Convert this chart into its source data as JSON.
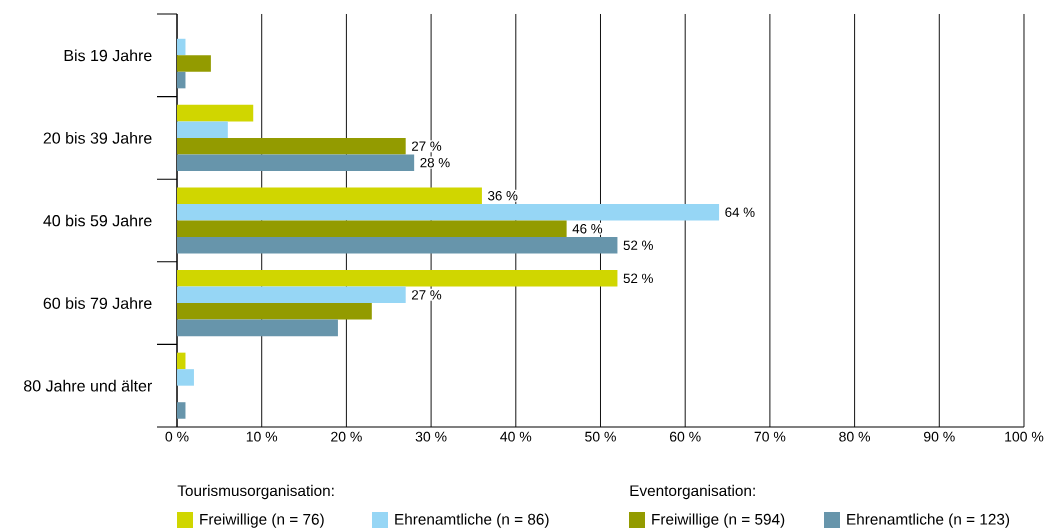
{
  "chart_data": {
    "type": "bar",
    "orientation": "horizontal",
    "categories": [
      "Bis 19 Jahre",
      "20 bis 39 Jahre",
      "40 bis 59 Jahre",
      "60 bis 79 Jahre",
      "80 Jahre und älter"
    ],
    "series": [
      {
        "name": "Freiwillige (n = 76)",
        "color": "#d0d600",
        "values": [
          null,
          9,
          36,
          52,
          1
        ],
        "value_labels": [
          null,
          null,
          "36 %",
          "52 %",
          null
        ]
      },
      {
        "name": "Ehrenamtliche (n = 86)",
        "color": "#96d6f5",
        "values": [
          1,
          6,
          64,
          27,
          2
        ],
        "value_labels": [
          null,
          null,
          "64 %",
          "27 %",
          null
        ]
      },
      {
        "name": "Freiwillige (n = 594)",
        "color": "#939b00",
        "values": [
          4,
          27,
          46,
          23,
          null
        ],
        "value_labels": [
          null,
          "27 %",
          "46 %",
          null,
          null
        ]
      },
      {
        "name": "Ehrenamtliche (n = 123)",
        "color": "#6795ab",
        "values": [
          1,
          28,
          52,
          19,
          1
        ],
        "value_labels": [
          null,
          "28 %",
          "52 %",
          null,
          null
        ]
      }
    ],
    "xlim": [
      0,
      100
    ],
    "xticks": [
      {
        "value": 0,
        "label": "0 %"
      },
      {
        "value": 10,
        "label": "10 %"
      },
      {
        "value": 20,
        "label": "20 %"
      },
      {
        "value": 30,
        "label": "30 %"
      },
      {
        "value": 40,
        "label": "40 %"
      },
      {
        "value": 50,
        "label": "50 %"
      },
      {
        "value": 60,
        "label": "60 %"
      },
      {
        "value": 70,
        "label": "70 %"
      },
      {
        "value": 80,
        "label": "80 %"
      },
      {
        "value": 90,
        "label": "90 %"
      },
      {
        "value": 100,
        "label": "100 %"
      }
    ],
    "grid": "x",
    "legend": "bottom",
    "annotations": [
      "Tourismusorganisation:",
      "Eventorganisation:"
    ]
  }
}
